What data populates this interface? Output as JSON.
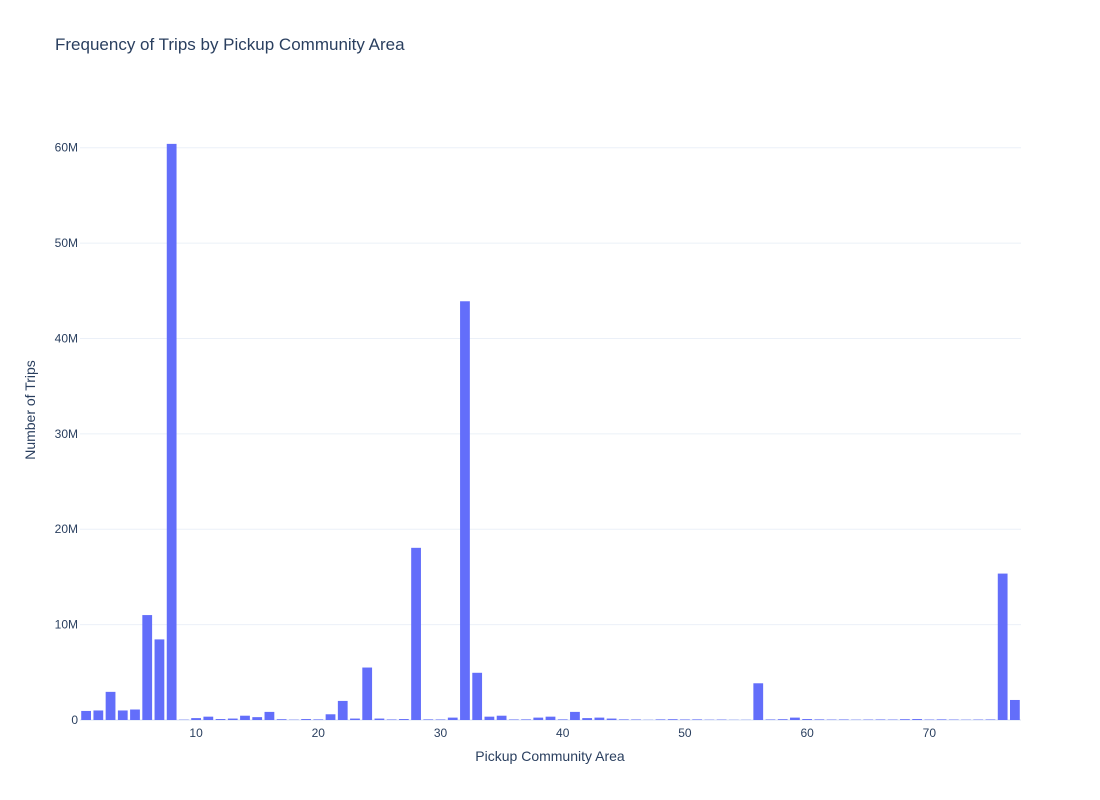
{
  "chart_data": {
    "type": "bar",
    "title": "Frequency of Trips by Pickup Community Area",
    "xlabel": "Pickup Community Area",
    "ylabel": "Number of Trips",
    "bar_color": "#636efa",
    "grid_color": "#ebf0f8",
    "text_color": "#2a3f5f",
    "xlim": [
      0.5,
      77.5
    ],
    "ylim": [
      0,
      65000000
    ],
    "x_ticks": [
      10,
      20,
      30,
      40,
      50,
      60,
      70
    ],
    "x_tick_labels": [
      "10",
      "20",
      "30",
      "40",
      "50",
      "60",
      "70"
    ],
    "y_ticks": [
      0,
      10000000,
      20000000,
      30000000,
      40000000,
      50000000,
      60000000
    ],
    "y_tick_labels": [
      "0",
      "10M",
      "20M",
      "30M",
      "40M",
      "50M",
      "60M"
    ],
    "grid": true,
    "legend": "none",
    "x": [
      1,
      2,
      3,
      4,
      5,
      6,
      7,
      8,
      9,
      10,
      11,
      12,
      13,
      14,
      15,
      16,
      17,
      18,
      19,
      20,
      21,
      22,
      23,
      24,
      25,
      26,
      27,
      28,
      29,
      30,
      31,
      32,
      33,
      34,
      35,
      36,
      37,
      38,
      39,
      40,
      41,
      42,
      43,
      44,
      45,
      46,
      47,
      48,
      49,
      50,
      51,
      52,
      53,
      54,
      55,
      56,
      57,
      58,
      59,
      60,
      61,
      62,
      63,
      64,
      65,
      66,
      67,
      68,
      69,
      70,
      71,
      72,
      73,
      74,
      75,
      76,
      77
    ],
    "values": [
      950000,
      1000000,
      2950000,
      1000000,
      1100000,
      11000000,
      8450000,
      60400000,
      30000,
      200000,
      350000,
      100000,
      150000,
      450000,
      300000,
      850000,
      80000,
      30000,
      100000,
      60000,
      600000,
      2000000,
      150000,
      5500000,
      150000,
      50000,
      100000,
      18050000,
      60000,
      50000,
      250000,
      43900000,
      4950000,
      350000,
      450000,
      50000,
      60000,
      250000,
      350000,
      60000,
      850000,
      200000,
      250000,
      150000,
      60000,
      50000,
      20000,
      60000,
      80000,
      50000,
      60000,
      30000,
      40000,
      20000,
      20000,
      3850000,
      50000,
      80000,
      250000,
      100000,
      60000,
      40000,
      50000,
      30000,
      40000,
      50000,
      40000,
      80000,
      100000,
      40000,
      60000,
      40000,
      30000,
      40000,
      50000,
      15350000,
      2100000
    ]
  }
}
